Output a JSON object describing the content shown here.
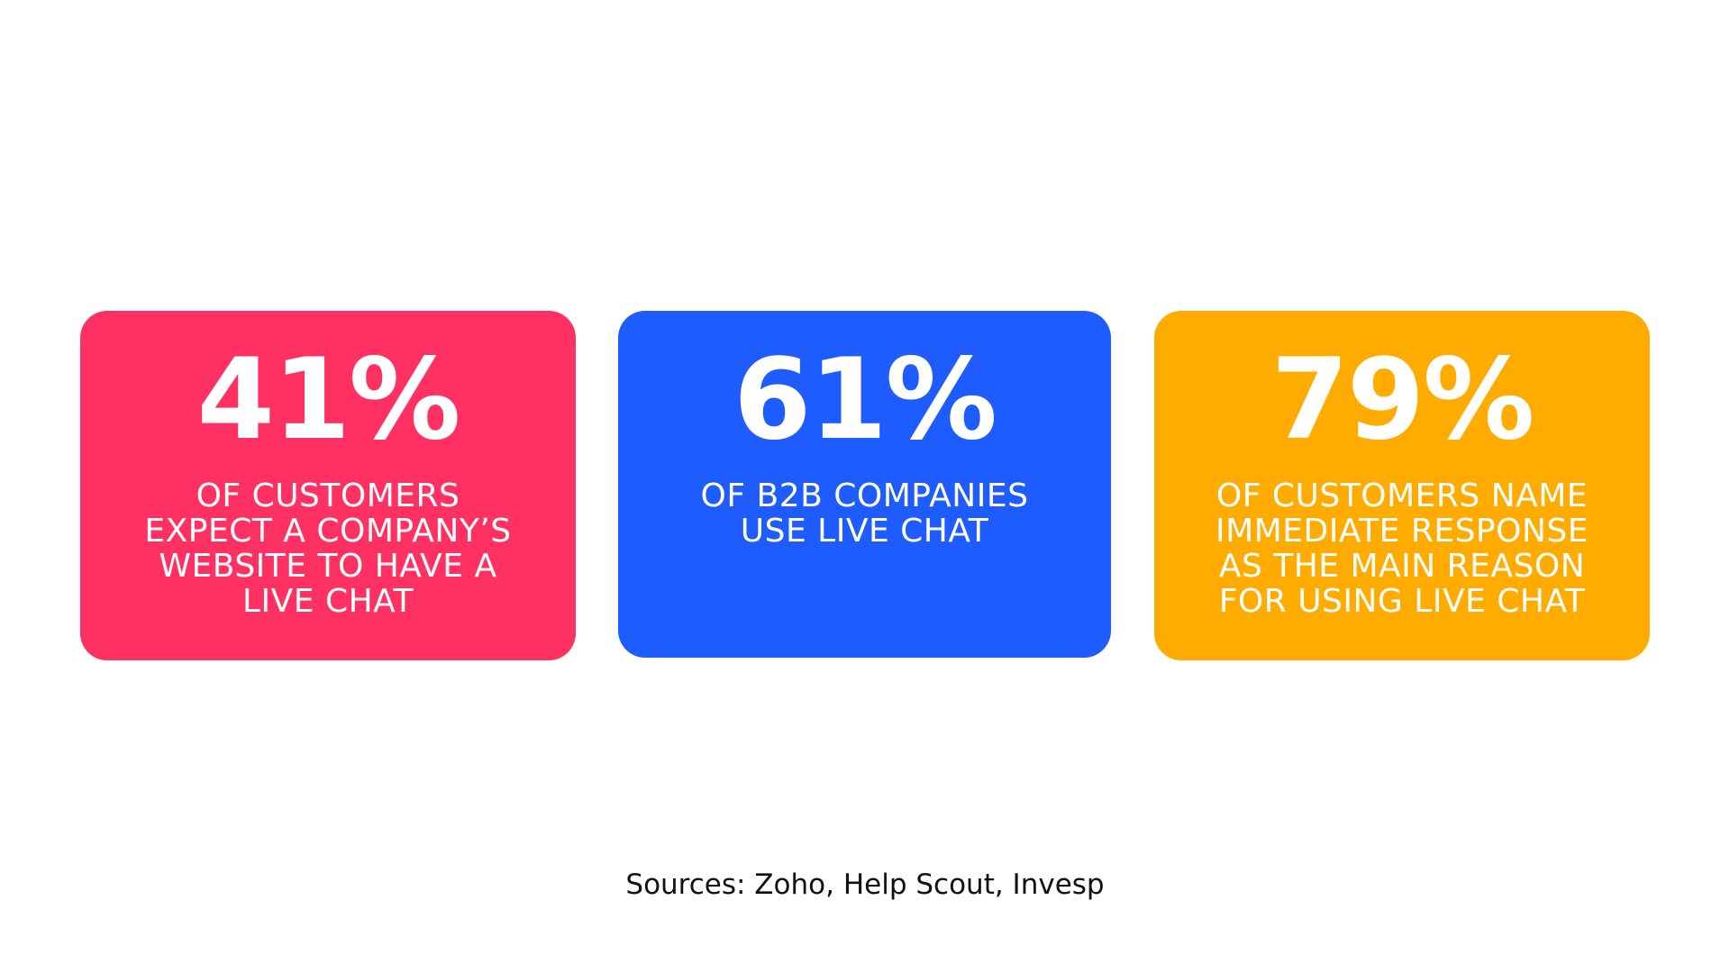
{
  "cards": [
    {
      "stat": "41%",
      "color": "#ff3162",
      "lines": [
        "OF CUSTOMERS",
        "EXPECT A COMPANY’S",
        "WEBSITE TO HAVE A",
        "LIVE CHAT"
      ]
    },
    {
      "stat": "61%",
      "color": "#1f5cff",
      "lines": [
        "OF B2B COMPANIES",
        "USE LIVE CHAT"
      ]
    },
    {
      "stat": "79%",
      "color": "#ffab00",
      "lines": [
        "OF CUSTOMERS NAME",
        "IMMEDIATE RESPONSE",
        "AS THE MAIN REASON",
        "FOR USING LIVE CHAT"
      ]
    }
  ],
  "footer": {
    "sources": "Sources: Zoho, Help Scout, Invesp"
  }
}
